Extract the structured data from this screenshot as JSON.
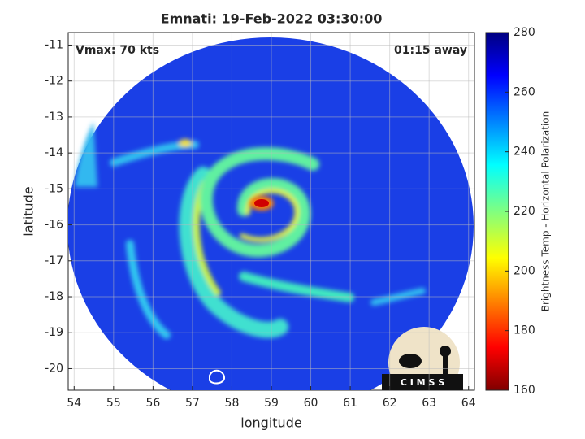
{
  "chart_data": {
    "type": "image",
    "title": "Emnati: 19-Feb-2022 03:30:00",
    "annotations": [
      "Vmax: 70 kts",
      "01:15 away"
    ],
    "xlabel": "longitude",
    "ylabel": "latitude",
    "xlim": [
      53.85,
      64.15
    ],
    "xticks": [
      54,
      55,
      56,
      57,
      58,
      59,
      60,
      61,
      62,
      63,
      64
    ],
    "ylim": [
      -20.6,
      -10.65
    ],
    "yticks": [
      -20,
      -19,
      -18,
      -17,
      -16,
      -15,
      -14,
      -13,
      -12,
      -11
    ],
    "grid": true,
    "colorbar": {
      "label": "Brightness Temp - Horizontal Polarization",
      "lim": [
        160,
        280
      ],
      "ticks": [
        160,
        180,
        200,
        220,
        240,
        260,
        280
      ]
    },
    "logo": "C I M S S"
  }
}
